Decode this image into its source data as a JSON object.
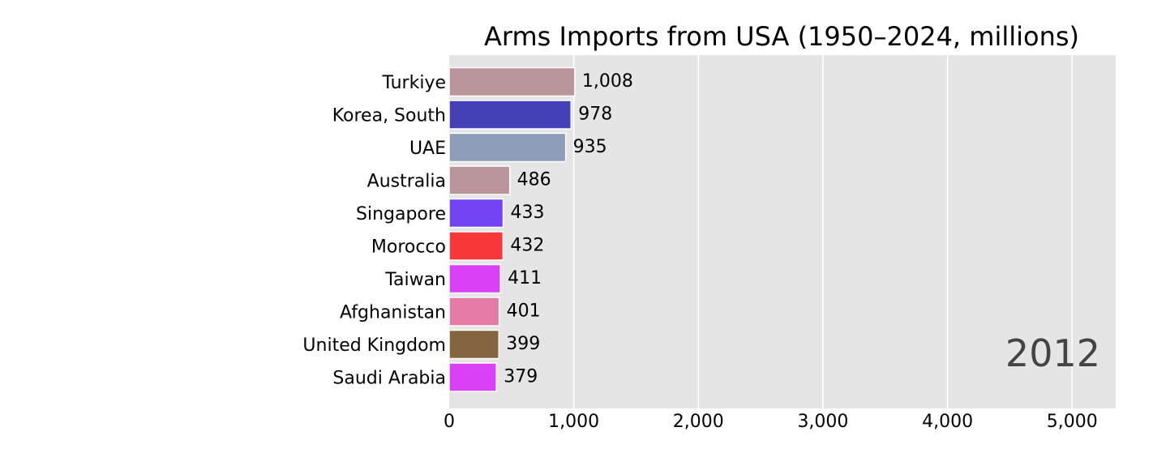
{
  "chart_data": {
    "type": "bar",
    "orientation": "horizontal",
    "title": "Arms Imports from USA (1950–2024, millions)",
    "year_label": "2012",
    "categories": [
      "Turkiye",
      "Korea, South",
      "UAE",
      "Australia",
      "Singapore",
      "Morocco",
      "Taiwan",
      "Afghanistan",
      "United Kingdom",
      "Saudi Arabia"
    ],
    "values": [
      1008,
      978,
      935,
      486,
      433,
      432,
      411,
      401,
      399,
      379
    ],
    "value_labels": [
      "1,008",
      "978",
      "935",
      "486",
      "433",
      "432",
      "411",
      "401",
      "399",
      "379"
    ],
    "colors": [
      "#bb959c",
      "#4341b5",
      "#8c9cb9",
      "#bb959c",
      "#7344f4",
      "#f8373b",
      "#da41f6",
      "#e37ba6",
      "#85653f",
      "#da41f6"
    ],
    "xlim": [
      0,
      5350
    ],
    "xticks": [
      0,
      1000,
      2000,
      3000,
      4000,
      5000
    ],
    "xtick_labels": [
      "0",
      "1,000",
      "2,000",
      "3,000",
      "4,000",
      "5,000"
    ],
    "grid": true,
    "background_color": "#e5e5e5",
    "grid_color": "#ffffff"
  }
}
